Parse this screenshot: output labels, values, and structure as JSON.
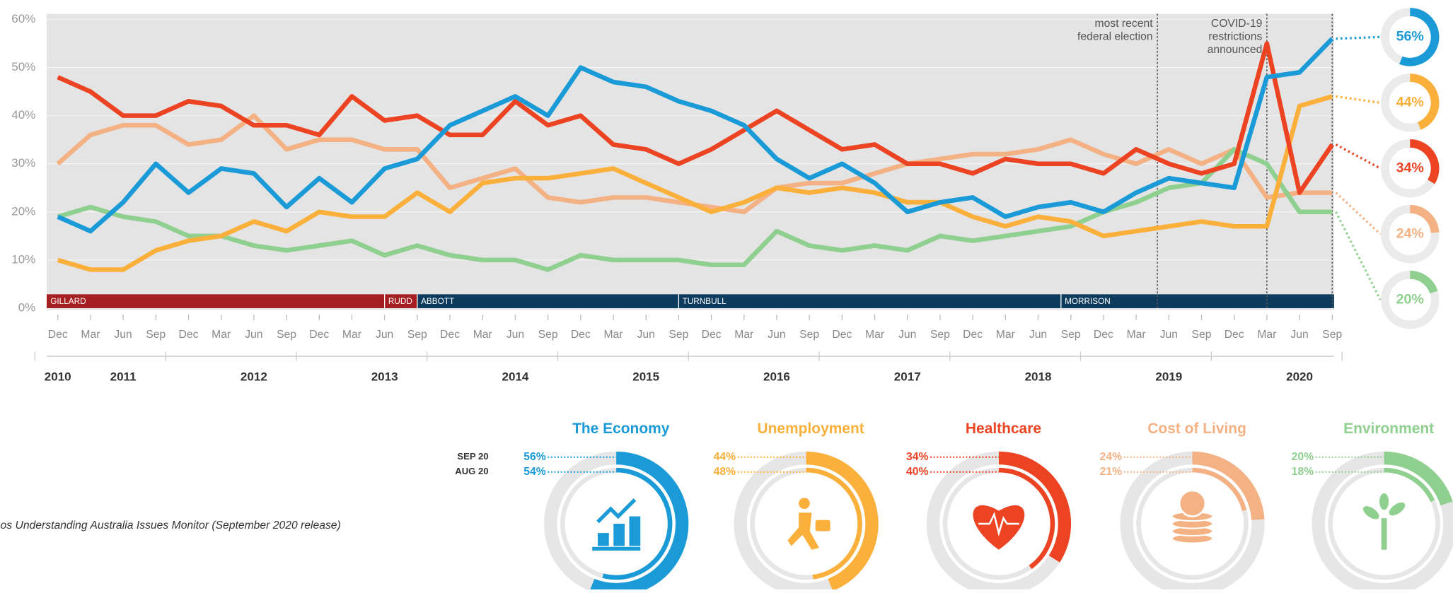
{
  "chart_data": {
    "type": "line",
    "categories": [
      "Dec",
      "Mar",
      "Jun",
      "Sep",
      "Dec",
      "Mar",
      "Jun",
      "Sep",
      "Dec",
      "Mar",
      "Jun",
      "Sep",
      "Dec",
      "Mar",
      "Jun",
      "Sep",
      "Dec",
      "Mar",
      "Jun",
      "Sep",
      "Dec",
      "Mar",
      "Jun",
      "Sep",
      "Dec",
      "Mar",
      "Jun",
      "Sep",
      "Dec",
      "Mar",
      "Jun",
      "Sep",
      "Dec",
      "Mar",
      "Jun",
      "Sep",
      "Dec",
      "Mar",
      "Jun",
      "Sep"
    ],
    "years": [
      "2010",
      "2011",
      "2012",
      "2013",
      "2014",
      "2015",
      "2016",
      "2017",
      "2018",
      "2019",
      "2020"
    ],
    "ylim": [
      0,
      60
    ],
    "yticks": [
      {
        "value": 0,
        "label": "0%"
      },
      {
        "value": 10,
        "label": "10%"
      },
      {
        "value": 20,
        "label": "20%"
      },
      {
        "value": 30,
        "label": "30%"
      },
      {
        "value": 40,
        "label": "40%"
      },
      {
        "value": 50,
        "label": "50%"
      },
      {
        "value": 60,
        "label": "60%"
      }
    ],
    "grid": true,
    "series": [
      {
        "name": "Cost of Living",
        "color": "#f4b183",
        "last_value_label": "24%",
        "values": [
          30,
          36,
          38,
          38,
          34,
          35,
          40,
          33,
          35,
          35,
          33,
          33,
          25,
          27,
          29,
          23,
          22,
          23,
          23,
          22,
          21,
          20,
          25,
          26,
          26,
          28,
          30,
          31,
          32,
          32,
          33,
          35,
          32,
          30,
          33,
          30,
          33,
          23,
          24,
          24
        ]
      },
      {
        "name": "Environment",
        "color": "#8fcf8f",
        "last_value_label": "20%",
        "values": [
          19,
          21,
          19,
          18,
          15,
          15,
          13,
          12,
          13,
          14,
          11,
          13,
          11,
          10,
          10,
          8,
          11,
          10,
          10,
          10,
          9,
          9,
          16,
          13,
          12,
          13,
          12,
          15,
          14,
          15,
          16,
          17,
          20,
          22,
          25,
          26,
          33,
          30,
          20,
          20
        ]
      },
      {
        "name": "Unemployment",
        "color": "#fbb03b",
        "last_value_label": "44%",
        "values": [
          10,
          8,
          8,
          12,
          14,
          15,
          18,
          16,
          20,
          19,
          19,
          24,
          20,
          26,
          27,
          27,
          28,
          29,
          26,
          23,
          20,
          22,
          25,
          24,
          25,
          24,
          22,
          22,
          19,
          17,
          19,
          18,
          15,
          16,
          17,
          18,
          17,
          17,
          42,
          44
        ]
      },
      {
        "name": "Healthcare",
        "color": "#ec4323",
        "last_value_label": "34%",
        "values": [
          48,
          45,
          40,
          40,
          43,
          42,
          38,
          38,
          36,
          44,
          39,
          40,
          36,
          36,
          43,
          38,
          40,
          34,
          33,
          30,
          33,
          37,
          41,
          37,
          33,
          34,
          30,
          30,
          28,
          31,
          30,
          30,
          28,
          33,
          30,
          28,
          30,
          55,
          24,
          34
        ]
      },
      {
        "name": "The Economy",
        "color": "#1a9ad6",
        "last_value_label": "56%",
        "values": [
          19,
          16,
          22,
          30,
          24,
          29,
          28,
          21,
          27,
          22,
          29,
          31,
          38,
          41,
          44,
          40,
          50,
          47,
          46,
          43,
          41,
          38,
          31,
          27,
          30,
          26,
          20,
          22,
          23,
          19,
          21,
          22,
          20,
          24,
          27,
          26,
          25,
          48,
          49,
          56
        ]
      }
    ],
    "leaders": [
      {
        "name": "GILLARD",
        "start_index": 0
      },
      {
        "name": "RUDD",
        "start_index": 10
      },
      {
        "name": "ABBOTT",
        "start_index": 11
      },
      {
        "name": "TURNBULL",
        "start_index": 19
      },
      {
        "name": "MORRISON",
        "start_index": 30.7
      }
    ],
    "annotations": [
      {
        "lines": [
          "most recent",
          "federal election"
        ],
        "index": 33.65
      },
      {
        "lines": [
          "COVID-19",
          "restrictions",
          "announced"
        ],
        "index": 37
      }
    ]
  },
  "issues_panel": {
    "period_labels": [
      "SEP 20",
      "AUG 20"
    ],
    "issues": [
      {
        "name": "The Economy",
        "color": "#1a9ad6",
        "values": [
          56,
          54
        ],
        "value_labels": [
          "56%",
          "54%"
        ]
      },
      {
        "name": "Unemployment",
        "color": "#fbb03b",
        "values": [
          44,
          48
        ],
        "value_labels": [
          "44%",
          "48%"
        ]
      },
      {
        "name": "Healthcare",
        "color": "#ec4323",
        "values": [
          34,
          40
        ],
        "value_labels": [
          "34%",
          "40%"
        ]
      },
      {
        "name": "Cost of Living",
        "color": "#f4b183",
        "values": [
          24,
          21
        ],
        "value_labels": [
          "24%",
          "21%"
        ]
      },
      {
        "name": "Environment",
        "color": "#8fcf8f",
        "values": [
          20,
          18
        ],
        "value_labels": [
          "20%",
          "18%"
        ]
      }
    ]
  },
  "source": "os Understanding Australia Issues Monitor (September 2020 release)"
}
